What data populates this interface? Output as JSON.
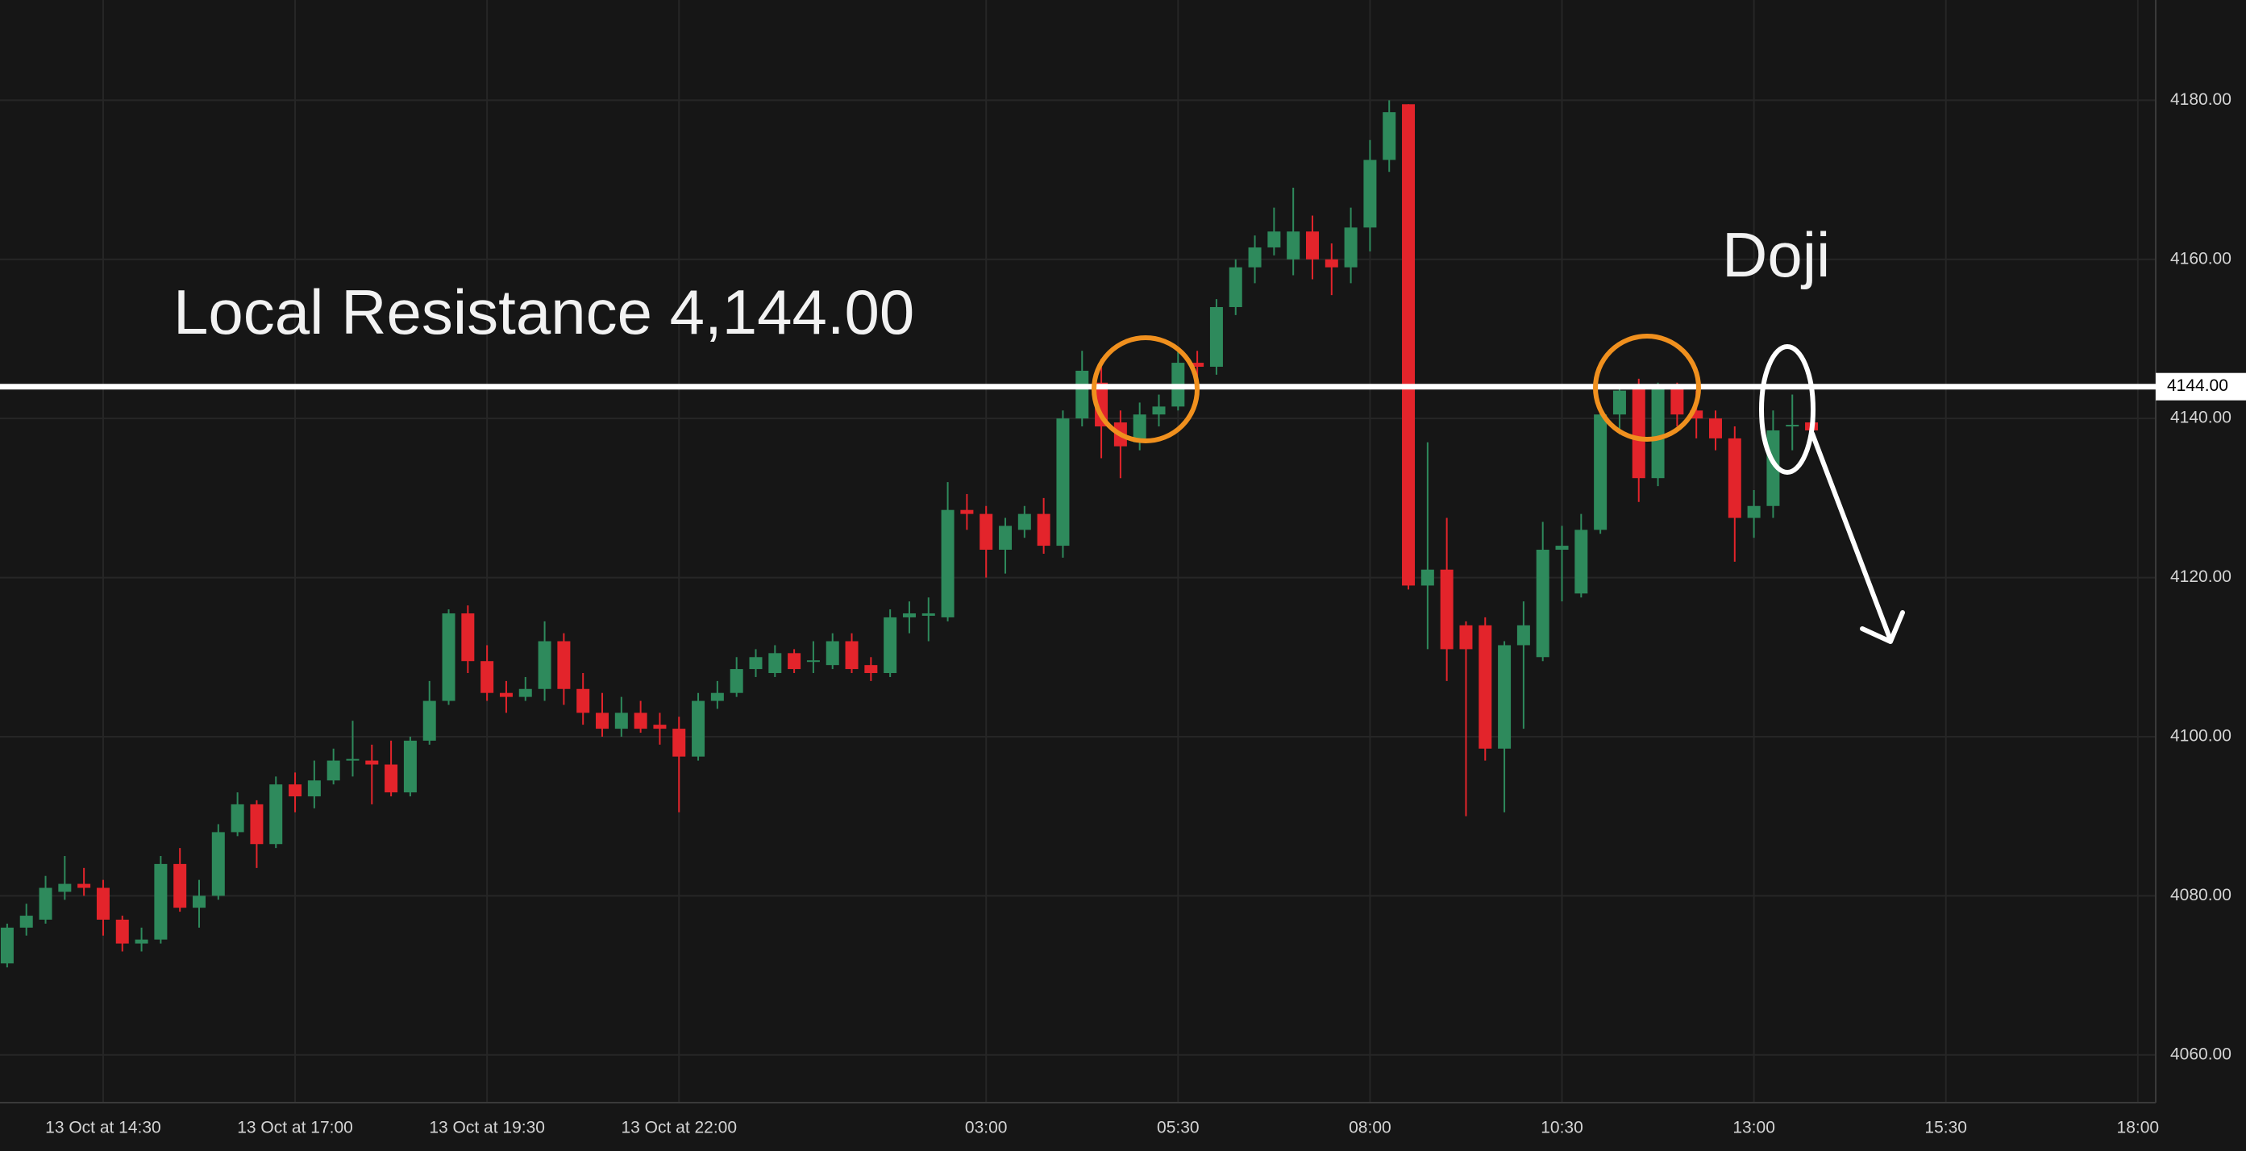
{
  "chart_data": {
    "type": "candlestick",
    "annotations": [
      "Local Resistance 4,144.00",
      "Doji"
    ],
    "resistance": {
      "value": 4144,
      "label": "4144.00",
      "color": "#ffffff"
    },
    "up_color": "#2e8a5c",
    "down_color": "#e3242b",
    "grid": true,
    "ylim": [
      4054,
      4192.6
    ],
    "yticks": [
      {
        "value": 4060,
        "label": "4060.00"
      },
      {
        "value": 4080,
        "label": "4080.00"
      },
      {
        "value": 4100,
        "label": "4100.00"
      },
      {
        "value": 4120,
        "label": "4120.00"
      },
      {
        "value": 4140,
        "label": "4140.00"
      },
      {
        "value": 4160,
        "label": "4160.00"
      },
      {
        "value": 4180,
        "label": "4180.00"
      }
    ],
    "categories": [
      null,
      null,
      null,
      null,
      null,
      "13 Oct at 14:30",
      null,
      null,
      null,
      null,
      null,
      null,
      null,
      null,
      null,
      "13 Oct at 17:00",
      null,
      null,
      null,
      null,
      null,
      null,
      null,
      null,
      null,
      "13 Oct at 19:30",
      null,
      null,
      null,
      null,
      null,
      null,
      null,
      null,
      null,
      "13 Oct at 22:00",
      null,
      null,
      null,
      null,
      null,
      null,
      null,
      null,
      null,
      null,
      null,
      null,
      null,
      null,
      null,
      "03:00",
      null,
      null,
      null,
      null,
      null,
      null,
      null,
      null,
      null,
      "05:30",
      null,
      null,
      null,
      null,
      null,
      null,
      null,
      null,
      null,
      "08:00",
      null,
      null,
      null,
      null,
      null,
      null,
      null,
      null,
      null,
      "10:30",
      null,
      null,
      null,
      null,
      null,
      null,
      null,
      null,
      null,
      "13:00",
      null,
      null,
      null,
      null,
      null,
      null,
      null,
      null,
      null,
      "15:30",
      null,
      null,
      null,
      null,
      null,
      null,
      null,
      null,
      null,
      "18:00"
    ],
    "open": [
      4071.5,
      4076,
      4077,
      4080.5,
      4081.5,
      4081,
      4077,
      4074,
      4074.5,
      4084,
      4078.5,
      4080,
      4088,
      4091.5,
      4086.5,
      4094,
      4092.5,
      4094.5,
      4097,
      4097,
      4096.5,
      4093,
      4099.5,
      4104.5,
      4115.5,
      4109.5,
      4105.5,
      4105,
      4106,
      4112,
      4106,
      4103,
      4101,
      4103,
      4101.5,
      4101,
      4097.5,
      4104.5,
      4105.5,
      4108.5,
      4108,
      4110.5,
      4109.5,
      4109,
      4112,
      4109,
      4108,
      4115,
      4115.2,
      4115,
      4128.5,
      4128,
      4123.5,
      4126,
      4128,
      4124,
      4140,
      4144.5,
      4139.5,
      4137,
      4140.5,
      4141.5,
      4147,
      4146.5,
      4154,
      4159,
      4161.5,
      4160,
      4163.5,
      4160,
      4159,
      4164,
      4172.5,
      4179.5,
      4119,
      4121,
      4114,
      4114,
      4098.5,
      4111.5,
      4110,
      4123.5,
      4118,
      4126,
      4140.5,
      4144,
      4132.5,
      4144,
      4141,
      4140,
      4137.5,
      4127.5,
      4129,
      4139,
      4139.5,
      null,
      null,
      null,
      null,
      null,
      null,
      null,
      null,
      null,
      null,
      null,
      null,
      null,
      null,
      null,
      null,
      null
    ],
    "high": [
      4076.5,
      4079,
      4082.5,
      4085,
      4083.5,
      4082,
      4077.5,
      4076,
      4085,
      4086,
      4082,
      4089,
      4093,
      4092,
      4095,
      4095.5,
      4097,
      4098.5,
      4102,
      4099,
      4099.5,
      4100,
      4107,
      4116,
      4116.5,
      4111.5,
      4107,
      4107.5,
      4114.5,
      4113,
      4108,
      4105.5,
      4105,
      4104.5,
      4103,
      4102.5,
      4105.5,
      4107,
      4110,
      4111,
      4111.5,
      4111,
      4112,
      4113,
      4113,
      4110,
      4116,
      4117,
      4117.5,
      4132,
      4130.5,
      4129,
      4127.5,
      4129,
      4130,
      4141,
      4148.5,
      4147.5,
      4141,
      4142,
      4143,
      4148.5,
      4148.5,
      4155,
      4160,
      4163,
      4166.5,
      4169,
      4165.5,
      4162,
      4166.5,
      4175,
      4180,
      4179.5,
      4137,
      4127.5,
      4114.5,
      4115,
      4112,
      4117,
      4127,
      4126.5,
      4128,
      4141.5,
      4144,
      4145,
      4144.5,
      4144.5,
      4143.5,
      4141,
      4139,
      4131,
      4141,
      4143,
      4140,
      null,
      null,
      null,
      null,
      null,
      null,
      null,
      null,
      null,
      null,
      null,
      null,
      null,
      null,
      null,
      null,
      null
    ],
    "low": [
      4071,
      4075,
      4076.5,
      4079.5,
      4080,
      4075,
      4073,
      4073,
      4074,
      4078,
      4076,
      4079.5,
      4087.5,
      4083.5,
      4086,
      4090.5,
      4091,
      4094,
      4095,
      4091.5,
      4092.5,
      4092.5,
      4099,
      4104,
      4108,
      4104.5,
      4103,
      4104.5,
      4104.5,
      4104,
      4101.5,
      4100,
      4100,
      4100.5,
      4099,
      4090.5,
      4097,
      4103.5,
      4105,
      4107.5,
      4107.5,
      4108,
      4108,
      4108.5,
      4108,
      4107,
      4107.5,
      4113,
      4112,
      4114.5,
      4126,
      4120,
      4120.5,
      4125,
      4123,
      4122.5,
      4139,
      4135,
      4132.5,
      4136,
      4139,
      4141,
      4145,
      4145.5,
      4153,
      4157,
      4160.5,
      4158,
      4157.5,
      4155.5,
      4157,
      4161,
      4171,
      4118.5,
      4111,
      4107,
      4090,
      4097,
      4090.5,
      4101,
      4109.5,
      4117,
      4117.5,
      4125.5,
      4138,
      4129.5,
      4131.5,
      4139,
      4137.5,
      4136,
      4122,
      4125,
      4127.5,
      4136,
      4138,
      null,
      null,
      null,
      null,
      null,
      null,
      null,
      null,
      null,
      null,
      null,
      null,
      null,
      null,
      null,
      null,
      null
    ],
    "close": [
      4076,
      4077.5,
      4081,
      4081.5,
      4081,
      4077,
      4074,
      4074.5,
      4084,
      4078.5,
      4080,
      4088,
      4091.5,
      4086.5,
      4094,
      4092.5,
      4094.5,
      4097,
      4097.2,
      4096.5,
      4093,
      4099.5,
      4104.5,
      4115.5,
      4109.5,
      4105.5,
      4105,
      4106,
      4112,
      4106,
      4103,
      4101,
      4103,
      4101,
      4101,
      4097.5,
      4104.5,
      4105.5,
      4108.5,
      4110,
      4110.5,
      4108.5,
      4109.6,
      4112,
      4108.5,
      4108,
      4115,
      4115.5,
      4115.5,
      4128.5,
      4128,
      4123.5,
      4126.5,
      4128,
      4124,
      4140,
      4146,
      4139,
      4136.5,
      4140.5,
      4141.5,
      4147,
      4146.5,
      4154,
      4159,
      4161.5,
      4163.5,
      4163.5,
      4160,
      4159,
      4164,
      4172.5,
      4178.5,
      4119,
      4121,
      4111,
      4111,
      4098.5,
      4111.5,
      4114,
      4123.5,
      4124,
      4126,
      4140.5,
      4143.5,
      4132.5,
      4144,
      4140.5,
      4140,
      4137.5,
      4127.5,
      4129,
      4138.5,
      4139.2,
      4138.5,
      null,
      null,
      null,
      null,
      null,
      null,
      null,
      null,
      null,
      null,
      null,
      null,
      null,
      null,
      null,
      null,
      null
    ]
  }
}
